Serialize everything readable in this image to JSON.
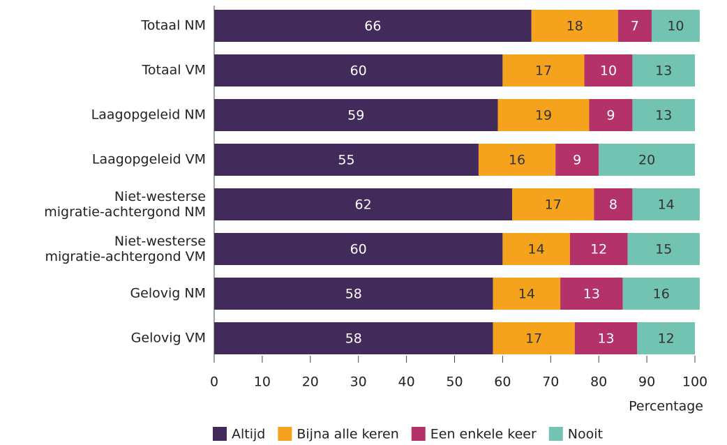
{
  "chart_data": {
    "type": "stacked_barh",
    "categories": [
      "Totaal NM",
      "Totaal VM",
      "Laagopgeleid NM",
      "Laagopgeleid VM",
      "Niet-westerse\nmigratie-achtergond NM",
      "Niet-westerse\nmigratie-achtergond VM",
      "Gelovig NM",
      "Gelovig VM"
    ],
    "series": [
      {
        "name": "Altijd",
        "color": "#422b5a",
        "values": [
          66,
          60,
          59,
          55,
          62,
          60,
          58,
          58
        ]
      },
      {
        "name": "Bijna alle keren",
        "color": "#f5a31d",
        "values": [
          18,
          17,
          19,
          16,
          17,
          14,
          14,
          17
        ]
      },
      {
        "name": "Een enkele keer",
        "color": "#b3326a",
        "values": [
          7,
          10,
          9,
          9,
          8,
          12,
          13,
          13
        ]
      },
      {
        "name": "Nooit",
        "color": "#72c3b1",
        "values": [
          10,
          13,
          13,
          20,
          14,
          15,
          16,
          12
        ]
      }
    ],
    "xlabel": "Percentage",
    "xlim": [
      0,
      100
    ],
    "xticks": [
      0,
      10,
      20,
      30,
      40,
      50,
      60,
      70,
      80,
      90,
      100
    ],
    "legend": "bottom"
  }
}
